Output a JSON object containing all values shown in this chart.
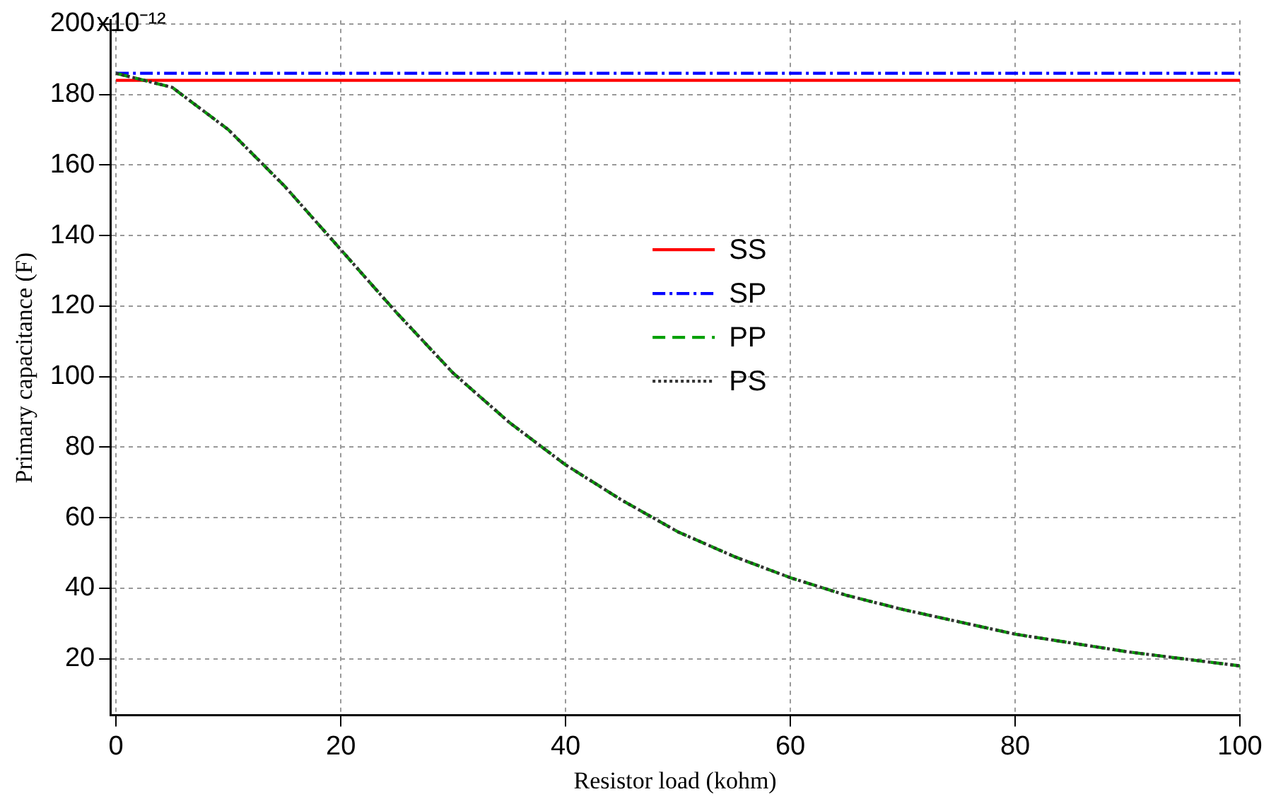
{
  "chart_data": {
    "type": "line",
    "xlabel": "Resistor load (kohm)",
    "ylabel": "Primary capacitance (F)",
    "xlim": [
      -0.5,
      100
    ],
    "xticks": [
      0,
      20,
      40,
      60,
      80,
      100
    ],
    "ylim": [
      4,
      201
    ],
    "yticks": [
      20,
      40,
      60,
      80,
      100,
      120,
      140,
      160,
      180,
      200
    ],
    "annotations": [
      "x10⁻¹²"
    ],
    "grid": true,
    "legend": "right",
    "marker": "none",
    "series": [
      {
        "name": "SS",
        "color": "#ff0000",
        "line_style": "solid",
        "x": [
          0,
          100
        ],
        "values": [
          184,
          184
        ]
      },
      {
        "name": "SP",
        "color": "#0000ff",
        "line_style": "dashdot",
        "x": [
          0,
          100
        ],
        "values": [
          186,
          186
        ]
      },
      {
        "name": "PP",
        "color": "#00a000",
        "line_style": "dashed",
        "x": [
          0,
          5,
          10,
          15,
          20,
          25,
          30,
          35,
          40,
          45,
          50,
          55,
          60,
          65,
          70,
          75,
          80,
          85,
          90,
          95,
          100
        ],
        "values": [
          186,
          182,
          170,
          154,
          136,
          118,
          101,
          87,
          75,
          65,
          56,
          49,
          43,
          38,
          34,
          30.5,
          27,
          24.5,
          22,
          20,
          18
        ]
      },
      {
        "name": "PS",
        "color": "#333333",
        "line_style": "dotted",
        "x": [
          0,
          5,
          10,
          15,
          20,
          25,
          30,
          35,
          40,
          45,
          50,
          55,
          60,
          65,
          70,
          75,
          80,
          85,
          90,
          95,
          100
        ],
        "values": [
          186,
          182,
          170,
          154,
          136,
          118,
          101,
          87,
          75,
          65,
          56,
          49,
          43,
          38,
          34,
          30.5,
          27,
          24.5,
          22,
          20,
          18
        ]
      }
    ]
  }
}
